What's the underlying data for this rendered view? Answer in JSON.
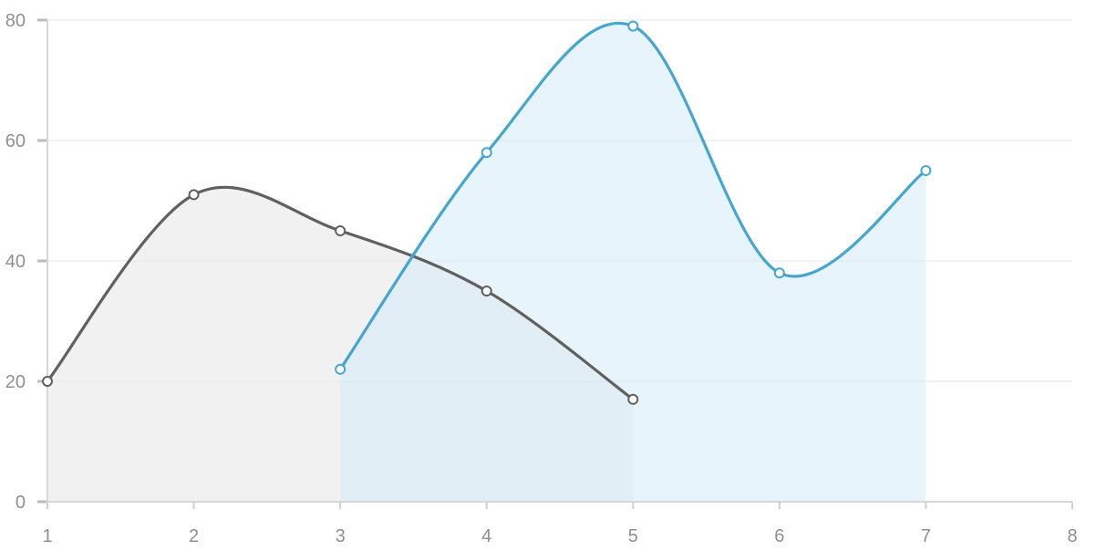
{
  "chart_data": {
    "type": "area",
    "x": [
      1,
      2,
      3,
      4,
      5,
      6,
      7,
      8
    ],
    "xlim": [
      1,
      8
    ],
    "ylim": [
      0,
      80
    ],
    "x_ticks": [
      1,
      2,
      3,
      4,
      5,
      6,
      7,
      8
    ],
    "y_ticks": [
      0,
      20,
      40,
      60,
      80
    ],
    "grid": true,
    "smooth": true,
    "title": "",
    "xlabel": "",
    "ylabel": "",
    "series": [
      {
        "color": "#606060",
        "fill": "#e6e6e6",
        "points": [
          {
            "x": 1,
            "y": 20
          },
          {
            "x": 2,
            "y": 51
          },
          {
            "x": 3,
            "y": 45
          },
          {
            "x": 4,
            "y": 35
          },
          {
            "x": 5,
            "y": 17
          }
        ]
      },
      {
        "color": "#45a6d0",
        "fill": "#d6ebf8",
        "points": [
          {
            "x": 3,
            "y": 22
          },
          {
            "x": 4,
            "y": 58
          },
          {
            "x": 5,
            "y": 79
          },
          {
            "x": 6,
            "y": 38
          },
          {
            "x": 7,
            "y": 55
          }
        ]
      }
    ]
  }
}
